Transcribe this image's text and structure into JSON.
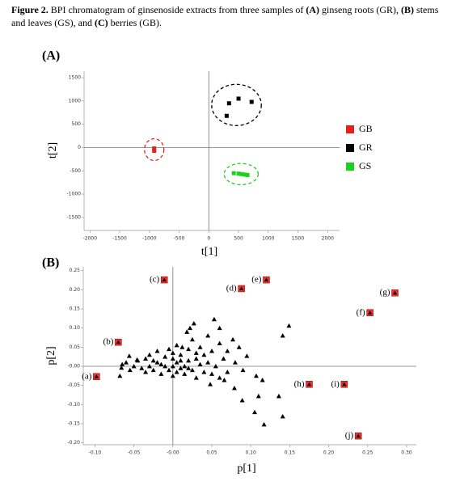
{
  "caption": {
    "label": "Figure 2.",
    "segments": [
      {
        "text": " BPI chromatogram of ginsenoside extracts from three samples of ",
        "bold": false
      },
      {
        "text": "(A)",
        "bold": true
      },
      {
        "text": " ginseng roots (GR), ",
        "bold": false
      },
      {
        "text": "(B)",
        "bold": true
      },
      {
        "text": " stems and leaves (GS), and ",
        "bold": false
      },
      {
        "text": "(C)",
        "bold": true
      },
      {
        "text": " berries (GB).",
        "bold": false
      }
    ]
  },
  "chart_data": [
    {
      "type": "scatter",
      "panel": "(A)",
      "xlabel": "t[1]",
      "ylabel": "t[2]",
      "xlim": [
        -2100,
        2200
      ],
      "ylim": [
        -1780,
        1640
      ],
      "xticks": [
        -2000,
        -1500,
        -1000,
        -500,
        0,
        500,
        1000,
        1500,
        2000
      ],
      "yticks": [
        1500,
        1000,
        500,
        0,
        -500,
        -1000,
        -1500
      ],
      "marker": "square",
      "confidence_ellipse": true,
      "legend": "right",
      "series": [
        {
          "name": "GB",
          "color": "#e8201c",
          "x": [
            -920,
            -920
          ],
          "values": [
            -20,
            -70
          ]
        },
        {
          "name": "GR",
          "color": "#000000",
          "x": [
            340,
            500,
            720,
            300
          ],
          "values": [
            950,
            1050,
            980,
            680
          ]
        },
        {
          "name": "GS",
          "color": "#1ad21a",
          "x": [
            420,
            500,
            550,
            600,
            650
          ],
          "values": [
            -550,
            -560,
            -570,
            -580,
            -590
          ]
        }
      ]
    },
    {
      "type": "scatter",
      "panel": "(B)",
      "xlabel": "p[1]",
      "ylabel": "p[2]",
      "xlim": [
        -0.115,
        0.3125
      ],
      "ylim": [
        -0.205,
        0.26
      ],
      "xticks": [
        {
          "value": -0.1,
          "label": "-0.10"
        },
        -0.05,
        {
          "value": 0,
          "label": "-0.00"
        },
        0.05,
        {
          "value": 0.1,
          "label": "0.10"
        },
        0.15,
        {
          "value": 0.2,
          "label": "0.20"
        },
        0.25,
        {
          "value": 0.3,
          "label": "0.30"
        }
      ],
      "yticks": [
        0.25,
        {
          "value": 0.2,
          "label": "0.20"
        },
        0.15,
        {
          "value": 0.1,
          "label": "0.10"
        },
        0.05,
        {
          "value": 0,
          "label": "-0.00"
        },
        -0.05,
        {
          "value": -0.1,
          "label": "-0.10"
        },
        -0.15,
        {
          "value": -0.2,
          "label": "-0.20"
        }
      ],
      "marker": "triangle",
      "series": [
        {
          "color": "#000000",
          "x": [
            -0.06,
            -0.05,
            -0.045,
            -0.04,
            -0.035,
            -0.03,
            -0.03,
            -0.025,
            -0.02,
            -0.02,
            -0.015,
            -0.01,
            -0.01,
            -0.005,
            -0.005,
            0,
            0,
            0,
            0.005,
            0.005,
            0.01,
            0.01,
            0.015,
            0.015,
            0.02,
            0.02,
            0.025,
            0.025,
            0.03,
            0.03,
            0.035,
            0.035,
            0.04,
            0.04,
            0.045,
            0.045,
            0.05,
            0.05,
            0.055,
            0.06,
            0.06,
            0.065,
            0.07,
            0.07,
            0.08,
            0.085,
            0.09,
            -0.055,
            -0.065,
            -0.035,
            0,
            0.01,
            -0.015,
            0.02,
            0.03,
            0.005,
            -0.025,
            0.012,
            0.018,
            0.022,
            0.149,
            0.141,
            0.053,
            0.06,
            0.027,
            0.077,
            0.095,
            0.107,
            0.115,
            0.117,
            0.105,
            0.089,
            0.136,
            0.141,
            0.079,
            0.11,
            0.066,
            0.048,
            -0.066,
            -0.056,
            -0.046,
            -0.068
          ],
          "values": [
            0.01,
            0,
            0.015,
            -0.005,
            0.02,
            0,
            0.03,
            -0.01,
            0.01,
            0.04,
            -0.02,
            0,
            0.025,
            -0.01,
            0.045,
            0,
            0.02,
            -0.025,
            0.01,
            0.055,
            -0.005,
            0.03,
            0,
            -0.02,
            0.015,
            0.045,
            -0.01,
            0.07,
            0.02,
            -0.03,
            0.005,
            0.05,
            -0.015,
            0.03,
            0.01,
            0.08,
            -0.02,
            0.04,
            0,
            0.06,
            -0.03,
            0.02,
            0.04,
            -0.015,
            0.01,
            0.05,
            -0.01,
            -0.01,
            0.005,
            -0.015,
            0.035,
            0.015,
            0.005,
            -0.005,
            0.035,
            -0.015,
            0.015,
            0.05,
            0.09,
            0.1,
            0.106,
            0.08,
            0.123,
            0.1,
            0.112,
            0.07,
            0.027,
            -0.025,
            -0.036,
            -0.152,
            -0.12,
            -0.089,
            -0.078,
            -0.131,
            -0.057,
            -0.078,
            -0.036,
            -0.047,
            -0.004,
            0.027,
            0.017,
            -0.025
          ]
        },
        {
          "color": "#e8322b",
          "boxed": true,
          "labels": [
            "(a)",
            "(b)",
            "(c)",
            "(d)",
            "(e)",
            "(f)",
            "(g)",
            "(h)",
            "(i)",
            "(j)"
          ],
          "x": [
            -0.098,
            -0.07,
            -0.011,
            0.088,
            0.12,
            0.253,
            0.285,
            0.175,
            0.22,
            0.238
          ],
          "values": [
            -0.027,
            0.063,
            0.226,
            0.203,
            0.226,
            0.14,
            0.192,
            -0.047,
            -0.047,
            -0.182
          ]
        }
      ]
    }
  ]
}
